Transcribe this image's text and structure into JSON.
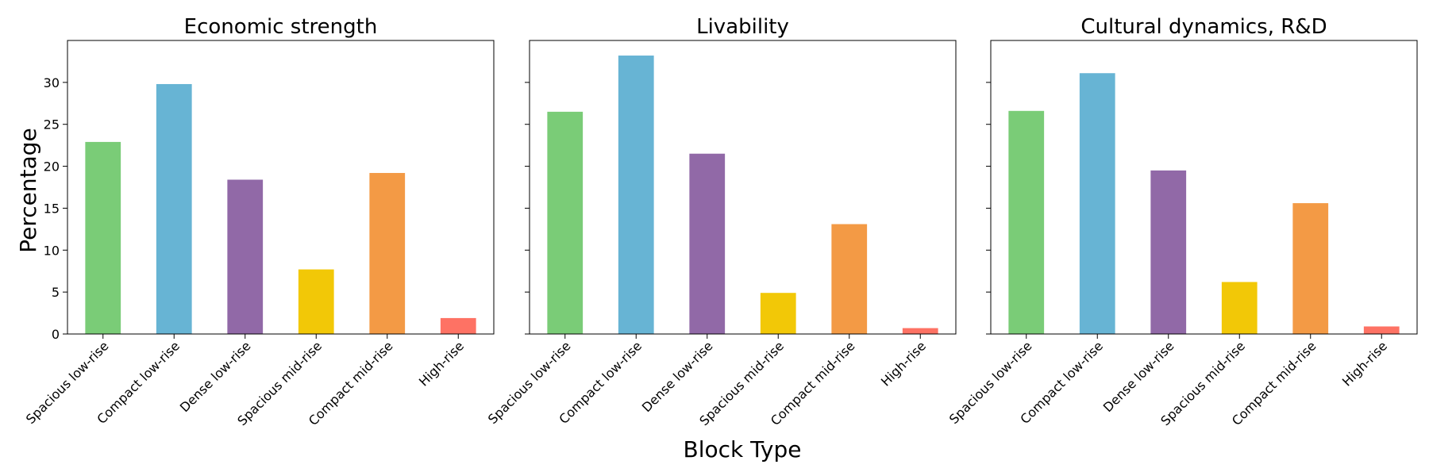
{
  "chart_data": {
    "type": "bar",
    "xlabel": "Block Type",
    "ylabel": "Percentage",
    "ylim": [
      0,
      35
    ],
    "yticks": [
      0,
      5,
      10,
      15,
      20,
      25,
      30
    ],
    "categories": [
      "Spacious low-rise",
      "Compact low-rise",
      "Dense low-rise",
      "Spacious mid-rise",
      "Compact mid-rise",
      "High-rise"
    ],
    "colors": [
      "#7acc77",
      "#67b4d4",
      "#9169a7",
      "#f2c807",
      "#f39a45",
      "#fe7264"
    ],
    "grid": false,
    "legend": "none",
    "panels": [
      {
        "title": "Economic strength",
        "values": [
          22.9,
          29.8,
          18.4,
          7.7,
          19.2,
          1.9
        ]
      },
      {
        "title": "Livability",
        "values": [
          26.5,
          33.2,
          21.5,
          4.9,
          13.1,
          0.7
        ]
      },
      {
        "title": "Cultural dynamics, R&D",
        "values": [
          26.6,
          31.1,
          19.5,
          6.2,
          15.6,
          0.9
        ]
      }
    ]
  }
}
